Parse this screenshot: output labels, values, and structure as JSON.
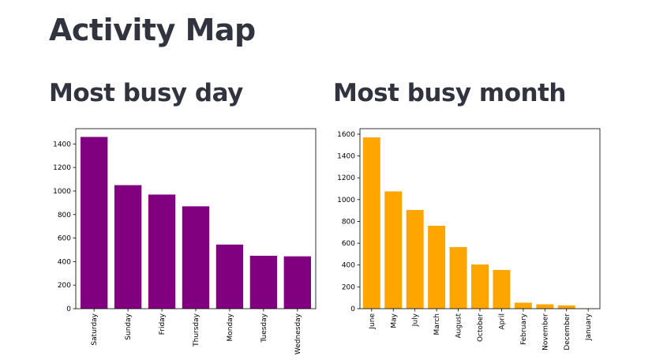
{
  "page": {
    "title": "Activity Map"
  },
  "sections": {
    "day_title": "Most busy day",
    "month_title": "Most busy month"
  },
  "chart_data": [
    {
      "type": "bar",
      "categories": [
        "Saturday",
        "Sunday",
        "Friday",
        "Thursday",
        "Monday",
        "Tuesday",
        "Wednesday"
      ],
      "values": [
        1460,
        1050,
        970,
        870,
        545,
        450,
        445
      ],
      "ylim": [
        0,
        1530
      ],
      "yticks": [
        0,
        200,
        400,
        600,
        800,
        1000,
        1200,
        1400
      ],
      "color": "#800080",
      "grid": false
    },
    {
      "type": "bar",
      "categories": [
        "June",
        "May",
        "July",
        "March",
        "August",
        "October",
        "April",
        "February",
        "November",
        "December",
        "January"
      ],
      "values": [
        1570,
        1075,
        905,
        760,
        565,
        405,
        355,
        55,
        40,
        30,
        2
      ],
      "ylim": [
        0,
        1650
      ],
      "yticks": [
        0,
        200,
        400,
        600,
        800,
        1000,
        1200,
        1400,
        1600
      ],
      "color": "#ffa500",
      "grid": false
    }
  ]
}
